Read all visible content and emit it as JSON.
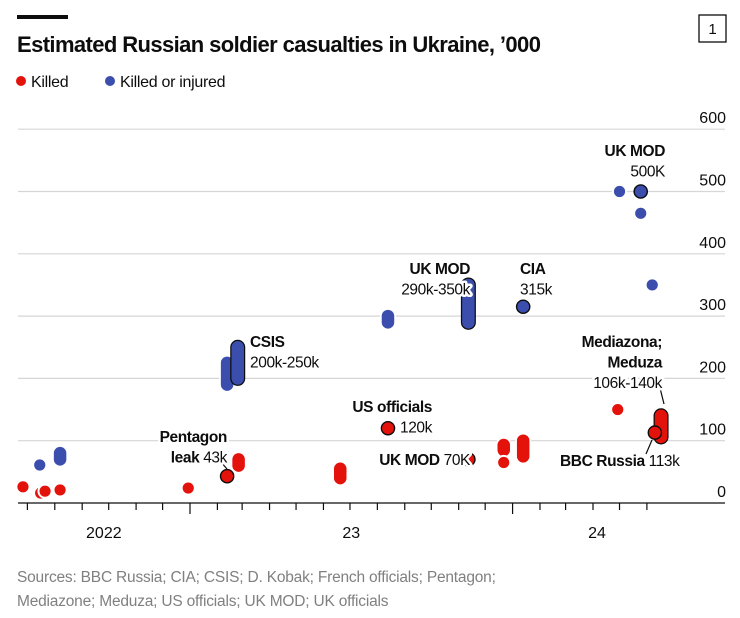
{
  "header": {
    "title": "Estimated Russian soldier casualties in Ukraine, ’000",
    "chart_number": "1"
  },
  "legend": [
    {
      "label": "Killed",
      "color": "#e3120b"
    },
    {
      "label": "Killed or injured",
      "color": "#3b4ead"
    }
  ],
  "footer": {
    "sources_line1": "Sources: BBC Russia; CIA; CSIS; D. Kobak; French officials; Pentagon;",
    "sources_line2": "Mediazone; Meduza; US officials; UK MOD; UK officials"
  },
  "chart_data": {
    "type": "scatter",
    "title": "Estimated Russian soldier casualties in Ukraine, ’000",
    "xlabel": "",
    "ylabel": "",
    "ylim": [
      0,
      600
    ],
    "yticks": [
      "0",
      "100",
      "200",
      "300",
      "400",
      "500",
      "600"
    ],
    "xlim": [
      "2022-06-20",
      "2024-07-10"
    ],
    "xtick_labels": [
      {
        "label": "2022",
        "year": 2022
      },
      {
        "label": "23",
        "year": 2023
      },
      {
        "label": "24",
        "year": 2024
      }
    ],
    "grid": true,
    "y_axis_side": "right",
    "legend_placement": "top-left",
    "series": [
      {
        "name": "Killed",
        "color": "#e3120b",
        "points": [
          {
            "date": "2022-06-26",
            "value": 26
          },
          {
            "date": "2022-07-16",
            "value": 16
          },
          {
            "date": "2022-07-21",
            "value": 19
          },
          {
            "date": "2022-08-07",
            "value": 21
          },
          {
            "date": "2022-12-30",
            "value": 24
          },
          {
            "date": "2023-02-12",
            "value": 43,
            "highlight": true
          },
          {
            "date": "2023-02-25",
            "low": 60,
            "high": 70
          },
          {
            "date": "2023-06-20",
            "low": 40,
            "high": 55
          },
          {
            "date": "2023-08-13",
            "value": 120,
            "highlight": true
          },
          {
            "date": "2023-11-12",
            "value": 70,
            "highlight": true
          },
          {
            "date": "2023-12-22",
            "low": 85,
            "high": 93
          },
          {
            "date": "2023-12-22",
            "value": 65
          },
          {
            "date": "2024-01-13",
            "low": 75,
            "high": 100
          },
          {
            "date": "2024-04-29",
            "value": 150
          },
          {
            "date": "2024-06-17",
            "low": 106,
            "high": 140,
            "highlight": true
          },
          {
            "date": "2024-06-10",
            "value": 113,
            "highlight": true
          }
        ]
      },
      {
        "name": "Killed or injured",
        "color": "#3b4ead",
        "points": [
          {
            "date": "2022-07-15",
            "value": 61
          },
          {
            "date": "2022-08-07",
            "low": 70,
            "high": 80
          },
          {
            "date": "2023-02-12",
            "low": 190,
            "high": 225
          },
          {
            "date": "2023-02-24",
            "low": 200,
            "high": 250,
            "highlight": true
          },
          {
            "date": "2023-08-13",
            "low": 290,
            "high": 300
          },
          {
            "date": "2023-11-12",
            "low": 290,
            "high": 350,
            "highlight": true
          },
          {
            "date": "2024-01-13",
            "value": 315,
            "highlight": true
          },
          {
            "date": "2024-05-01",
            "value": 500
          },
          {
            "date": "2024-05-25",
            "value": 500,
            "highlight": true
          },
          {
            "date": "2024-05-25",
            "value": 465
          },
          {
            "date": "2024-06-07",
            "value": 350
          }
        ]
      }
    ],
    "annotations": [
      {
        "lines": [
          {
            "bold": "Pentagon",
            "regular": ""
          },
          {
            "bold": "leak",
            "regular": " 43k"
          }
        ]
      },
      {
        "lines": [
          {
            "bold": "CSIS",
            "regular": ""
          },
          {
            "bold": "",
            "regular": "200k-250k"
          }
        ]
      },
      {
        "lines": [
          {
            "bold": "US officials",
            "regular": ""
          },
          {
            "bold": "",
            "regular": "120k"
          }
        ]
      },
      {
        "lines": [
          {
            "bold": "UK MOD",
            "regular": " 70K"
          }
        ]
      },
      {
        "lines": [
          {
            "bold": "UK MOD",
            "regular": ""
          },
          {
            "bold": "",
            "regular": "290k-350k"
          }
        ]
      },
      {
        "lines": [
          {
            "bold": "CIA",
            "regular": ""
          },
          {
            "bold": "",
            "regular": "315k"
          }
        ]
      },
      {
        "lines": [
          {
            "bold": "UK MOD",
            "regular": ""
          },
          {
            "bold": "",
            "regular": "500K"
          }
        ]
      },
      {
        "lines": [
          {
            "bold": "Mediazona;",
            "regular": ""
          },
          {
            "bold": "Meduza",
            "regular": ""
          },
          {
            "bold": "",
            "regular": "106k-140k"
          }
        ]
      },
      {
        "lines": [
          {
            "bold": "BBC Russia",
            "regular": " 113k"
          }
        ]
      }
    ]
  }
}
